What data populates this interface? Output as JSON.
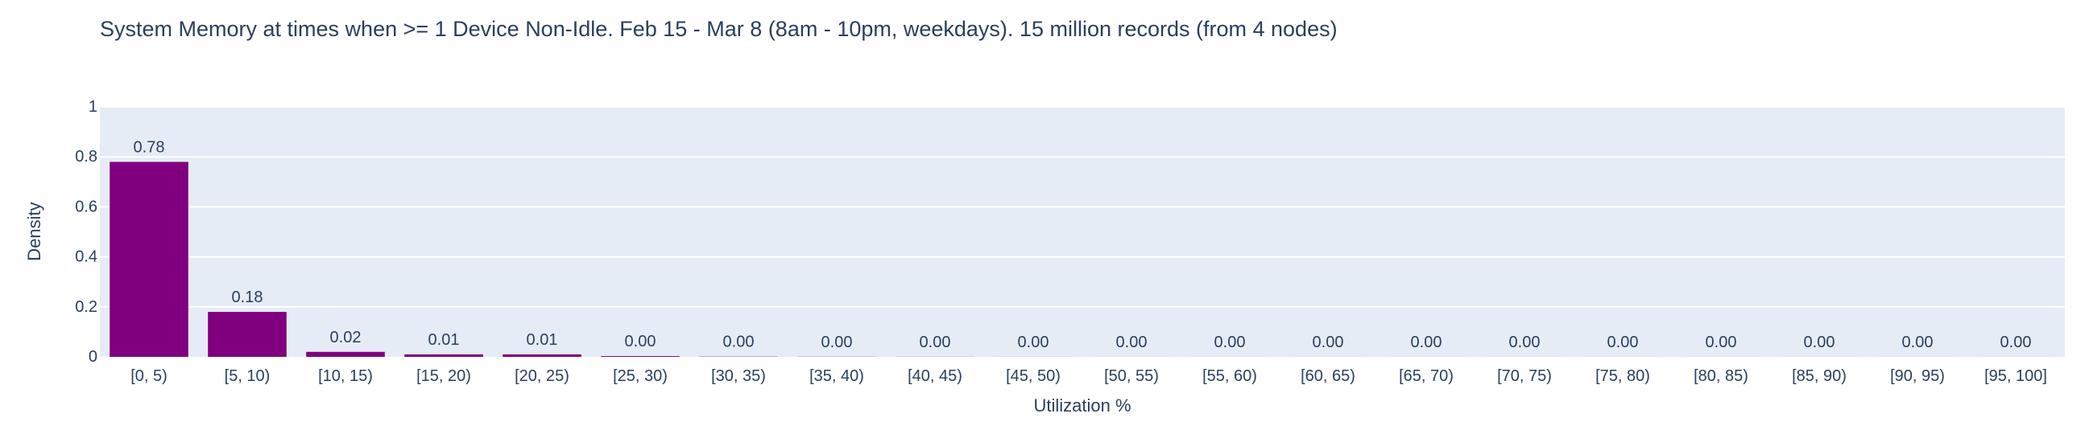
{
  "chart_data": {
    "type": "bar",
    "title": "System Memory at times when >= 1 Device Non-Idle. Feb 15 - Mar 8 (8am - 10pm, weekdays). 15 million records (from 4 nodes)",
    "xlabel": "Utilization %",
    "ylabel": "Density",
    "categories": [
      "[0, 5)",
      "[5, 10)",
      "[10, 15)",
      "[15, 20)",
      "[20, 25)",
      "[25, 30)",
      "[30, 35)",
      "[35, 40)",
      "[40, 45)",
      "[45, 50)",
      "[50, 55)",
      "[55, 60)",
      "[60, 65)",
      "[65, 70)",
      "[70, 75)",
      "[75, 80)",
      "[80, 85)",
      "[85, 90)",
      "[90, 95)",
      "[95, 100]"
    ],
    "values": [
      0.78,
      0.18,
      0.02,
      0.01,
      0.01,
      0.003,
      0.001,
      0.0005,
      0.0003,
      0.0002,
      0.0001,
      0.0001,
      0.0001,
      0.0001,
      0.0001,
      0.0001,
      0.0001,
      0.0001,
      0.0001,
      0.0001
    ],
    "data_labels": [
      "0.78",
      "0.18",
      "0.02",
      "0.01",
      "0.01",
      "0.00",
      "0.00",
      "0.00",
      "0.00",
      "0.00",
      "0.00",
      "0.00",
      "0.00",
      "0.00",
      "0.00",
      "0.00",
      "0.00",
      "0.00",
      "0.00",
      "0.00"
    ],
    "ylim": [
      0,
      1
    ],
    "yticks": [
      0,
      0.2,
      0.4,
      0.6,
      0.8,
      1
    ],
    "ytick_labels": [
      "0",
      "0.2",
      "0.4",
      "0.6",
      "0.8",
      "1"
    ],
    "bar_color": "#800080",
    "plot_bg": "#e5ecf6",
    "grid": true
  }
}
